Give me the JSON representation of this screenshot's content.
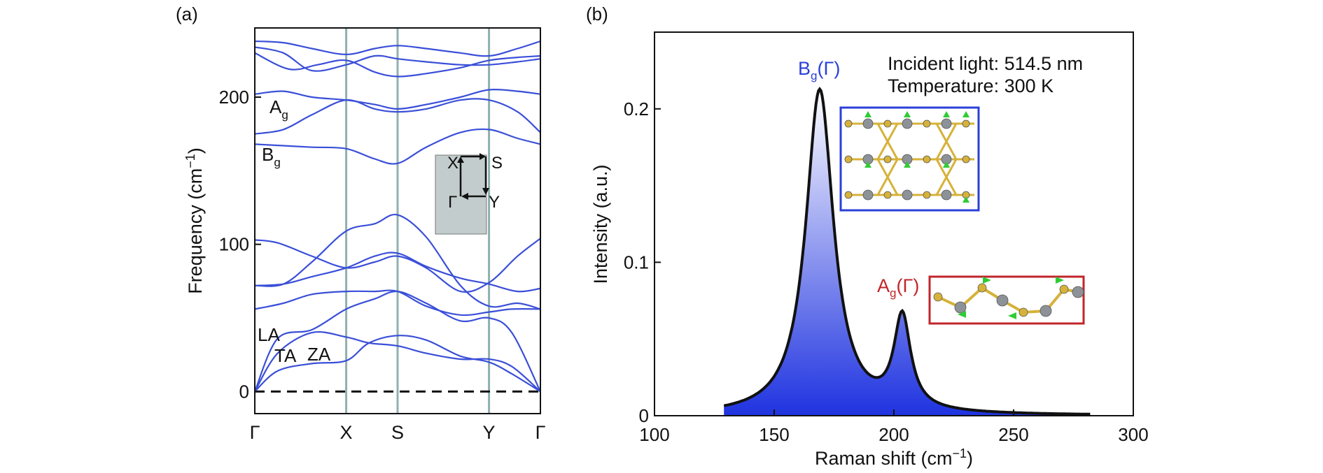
{
  "chart_data": [
    {
      "panel_label": "(a)",
      "type": "line",
      "ylabel": "Frequency (cm",
      "ylabel_sup": "−1",
      "ylabel_close": ")",
      "yticks": [
        0,
        100,
        200
      ],
      "ylim": [
        -15,
        247
      ],
      "kpath": [
        "Γ",
        "X",
        "S",
        "Y",
        "Γ"
      ],
      "kpath_pos": [
        0,
        0.32,
        0.5,
        0.82,
        1.0
      ],
      "line_color": "#3a4fd8",
      "vline_color": "#8fb0b0",
      "zero_line_style": "dashed",
      "series": [
        {
          "values": [
            [
              0,
              0
            ],
            [
              0.08,
              14
            ],
            [
              0.2,
              19
            ],
            [
              0.32,
              21
            ],
            [
              0.4,
              33
            ],
            [
              0.5,
              38
            ],
            [
              0.6,
              35
            ],
            [
              0.72,
              24
            ],
            [
              0.82,
              20
            ],
            [
              0.9,
              12
            ],
            [
              1.0,
              0
            ]
          ]
        },
        {
          "values": [
            [
              0,
              0
            ],
            [
              0.08,
              26
            ],
            [
              0.2,
              40
            ],
            [
              0.32,
              37
            ],
            [
              0.4,
              33
            ],
            [
              0.5,
              31
            ],
            [
              0.6,
              26
            ],
            [
              0.72,
              22
            ],
            [
              0.82,
              22
            ],
            [
              0.9,
              17
            ],
            [
              1.0,
              0
            ]
          ]
        },
        {
          "values": [
            [
              0,
              0
            ],
            [
              0.08,
              36
            ],
            [
              0.2,
              42
            ],
            [
              0.32,
              56
            ],
            [
              0.42,
              63
            ],
            [
              0.5,
              68
            ],
            [
              0.6,
              60
            ],
            [
              0.72,
              48
            ],
            [
              0.82,
              50
            ],
            [
              0.9,
              40
            ],
            [
              1.0,
              0
            ]
          ]
        },
        {
          "values": [
            [
              0,
              56
            ],
            [
              0.1,
              60
            ],
            [
              0.2,
              66
            ],
            [
              0.32,
              68
            ],
            [
              0.42,
              68
            ],
            [
              0.5,
              68
            ],
            [
              0.6,
              58
            ],
            [
              0.72,
              52
            ],
            [
              0.82,
              54
            ],
            [
              0.9,
              56
            ],
            [
              1.0,
              56
            ]
          ]
        },
        {
          "values": [
            [
              0,
              72
            ],
            [
              0.1,
              73
            ],
            [
              0.2,
              78
            ],
            [
              0.32,
              84
            ],
            [
              0.42,
              92
            ],
            [
              0.5,
              94
            ],
            [
              0.6,
              85
            ],
            [
              0.72,
              77
            ],
            [
              0.82,
              73
            ],
            [
              0.92,
              68
            ],
            [
              1.0,
              70
            ]
          ]
        },
        {
          "values": [
            [
              0,
              103
            ],
            [
              0.08,
              101
            ],
            [
              0.2,
              92
            ],
            [
              0.32,
              84
            ],
            [
              0.42,
              88
            ],
            [
              0.5,
              92
            ],
            [
              0.6,
              84
            ],
            [
              0.72,
              68
            ],
            [
              0.82,
              74
            ],
            [
              0.92,
              92
            ],
            [
              1.0,
              104
            ]
          ]
        },
        {
          "values": [
            [
              0,
              72
            ],
            [
              0.1,
              73
            ],
            [
              0.2,
              88
            ],
            [
              0.32,
              109
            ],
            [
              0.42,
              114
            ],
            [
              0.5,
              120
            ],
            [
              0.6,
              105
            ],
            [
              0.72,
              72
            ],
            [
              0.82,
              58
            ],
            [
              0.92,
              60
            ],
            [
              1.0,
              56
            ]
          ]
        },
        {
          "values": [
            [
              0,
              168
            ],
            [
              0.1,
              167
            ],
            [
              0.2,
              166
            ],
            [
              0.32,
              165
            ],
            [
              0.42,
              158
            ],
            [
              0.5,
              155
            ],
            [
              0.6,
              166
            ],
            [
              0.72,
              176
            ],
            [
              0.82,
              178
            ],
            [
              0.92,
              172
            ],
            [
              1.0,
              168
            ]
          ]
        },
        {
          "values": [
            [
              0,
              175
            ],
            [
              0.1,
              178
            ],
            [
              0.2,
              188
            ],
            [
              0.32,
              198
            ],
            [
              0.42,
              192
            ],
            [
              0.5,
              190
            ],
            [
              0.6,
              192
            ],
            [
              0.72,
              198
            ],
            [
              0.82,
              198
            ],
            [
              0.92,
              190
            ],
            [
              1.0,
              176
            ]
          ]
        },
        {
          "values": [
            [
              0,
              202
            ],
            [
              0.1,
              204
            ],
            [
              0.2,
              200
            ],
            [
              0.32,
              198
            ],
            [
              0.42,
              195
            ],
            [
              0.5,
              192
            ],
            [
              0.6,
              195
            ],
            [
              0.72,
              200
            ],
            [
              0.82,
              205
            ],
            [
              0.92,
              204
            ],
            [
              1.0,
              202
            ]
          ]
        },
        {
          "values": [
            [
              0,
              230
            ],
            [
              0.12,
              219
            ],
            [
              0.22,
              222
            ],
            [
              0.32,
              225
            ],
            [
              0.42,
              217
            ],
            [
              0.5,
              214
            ],
            [
              0.6,
              216
            ],
            [
              0.72,
              220
            ],
            [
              0.82,
              225
            ],
            [
              0.92,
              227
            ],
            [
              1.0,
              228
            ]
          ]
        },
        {
          "values": [
            [
              0,
              234
            ],
            [
              0.1,
              230
            ],
            [
              0.2,
              218
            ],
            [
              0.32,
              222
            ],
            [
              0.42,
              228
            ],
            [
              0.5,
              226
            ],
            [
              0.6,
              224
            ],
            [
              0.72,
              222
            ],
            [
              0.82,
              222
            ],
            [
              0.92,
              224
            ],
            [
              1.0,
              226
            ]
          ]
        },
        {
          "values": [
            [
              0,
              238
            ],
            [
              0.1,
              237
            ],
            [
              0.2,
              233
            ],
            [
              0.32,
              229
            ],
            [
              0.42,
              233
            ],
            [
              0.5,
              235
            ],
            [
              0.6,
              233
            ],
            [
              0.72,
              230
            ],
            [
              0.82,
              228
            ],
            [
              0.92,
              233
            ],
            [
              1.0,
              238
            ]
          ]
        }
      ],
      "annotations": [
        {
          "text": "A",
          "sub": "g"
        },
        {
          "text": "B",
          "sub": "g"
        },
        {
          "text": "LA"
        },
        {
          "text": "TA"
        },
        {
          "text": "ZA"
        }
      ],
      "inset": {
        "corners": [
          "X",
          "S",
          "Γ",
          "Y"
        ],
        "fill": "#c2cccc"
      }
    },
    {
      "panel_label": "(b)",
      "type": "area",
      "xlabel": "Raman shift (cm",
      "xlabel_sup": "−1",
      "xlabel_close": ")",
      "ylabel": "Intensity (a.u.)",
      "xlim": [
        100,
        300
      ],
      "ylim": [
        0,
        0.25
      ],
      "xticks": [
        100,
        150,
        200,
        250,
        300
      ],
      "yticks": [
        0,
        0.1,
        0.2
      ],
      "peaks": [
        {
          "center": 169,
          "amplitude": 0.212,
          "hwhm": 7.0,
          "label": "B",
          "sub": "g",
          "suffix": "(Γ)",
          "color": "#2a3fd8"
        },
        {
          "center": 203.5,
          "amplitude": 0.06,
          "hwhm": 4.2,
          "label": "A",
          "sub": "g",
          "suffix": "(Γ)",
          "color": "#c0262a"
        }
      ],
      "baseline_start": 129,
      "baseline_end": 282,
      "fill_top": "#ffffff",
      "fill_bottom": "#1f33e0",
      "info_lines": [
        "Incident light: 514.5 nm",
        "Temperature: 300 K"
      ],
      "inset_frame_colors": [
        "#2a3fd8",
        "#c0262a"
      ]
    }
  ]
}
